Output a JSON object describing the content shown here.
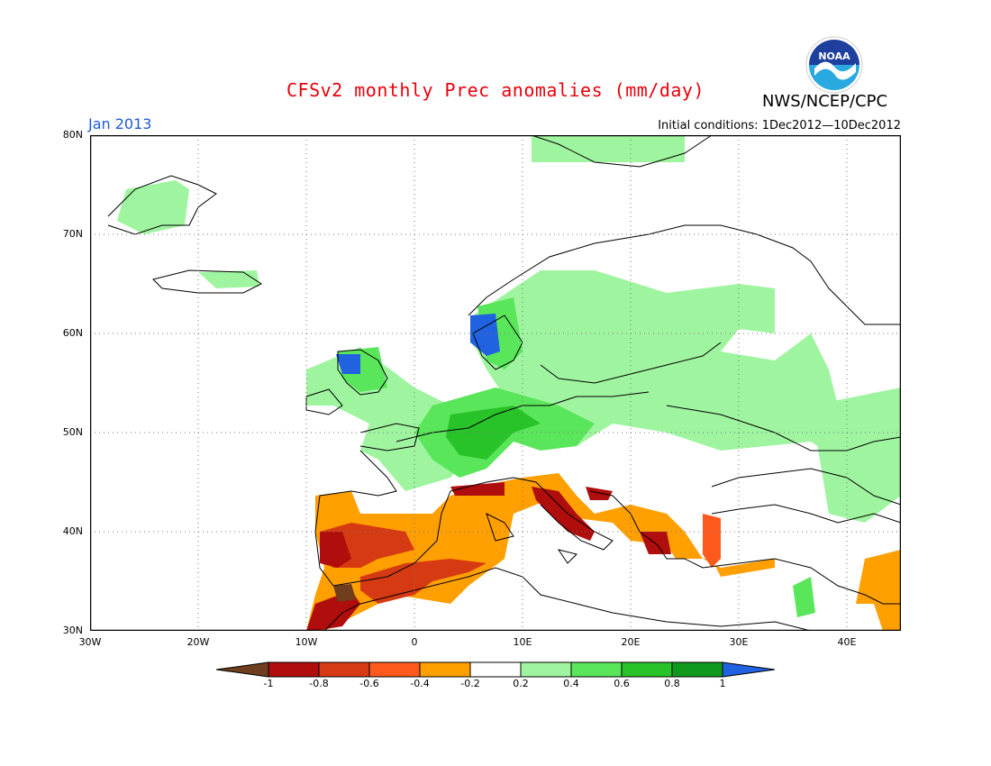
{
  "header": {
    "title": "CFSv2 monthly Prec anomalies (mm/day)",
    "agency": "NWS/NCEP/CPC",
    "month": "Jan 2013",
    "initial_conditions": "Initial conditions: 1Dec2012—10Dec2012"
  },
  "logo": {
    "text": "NOAA",
    "colors": {
      "top": "#1f3f9f",
      "bottom": "#2aa8e0"
    }
  },
  "map": {
    "lat_labels": [
      "80N",
      "70N",
      "60N",
      "50N",
      "40N",
      "30N"
    ],
    "lon_labels": [
      "30W",
      "20W",
      "10W",
      "0",
      "10E",
      "20E",
      "30E",
      "40E"
    ],
    "lon_range": [
      -30,
      45
    ],
    "lat_range": [
      30,
      80
    ]
  },
  "colorbar": {
    "labels": [
      "-1",
      "-0.8",
      "-0.6",
      "-0.4",
      "-0.2",
      "0.2",
      "0.4",
      "0.6",
      "0.8",
      "1"
    ],
    "colors": [
      "#6e3e1e",
      "#b00d0d",
      "#d63a12",
      "#ff5a1e",
      "#ff9f00",
      "#ffffff",
      "#9ff59f",
      "#5ae65a",
      "#28c328",
      "#0f9a1e",
      "#2062e0"
    ]
  },
  "anomaly_regions": [
    {
      "name": "iberia-dry",
      "color": "#ff9f00"
    },
    {
      "name": "iberia-core",
      "color": "#d63a12"
    },
    {
      "name": "morocco-dry",
      "color": "#b00d0d"
    },
    {
      "name": "italy-dry",
      "color": "#b00d0d"
    },
    {
      "name": "balkans-dry",
      "color": "#ff9f00"
    },
    {
      "name": "central-europe-wet",
      "color": "#28c328"
    },
    {
      "name": "scandinavia-wet",
      "color": "#9ff59f"
    },
    {
      "name": "norway-very-wet",
      "color": "#2062e0"
    }
  ]
}
